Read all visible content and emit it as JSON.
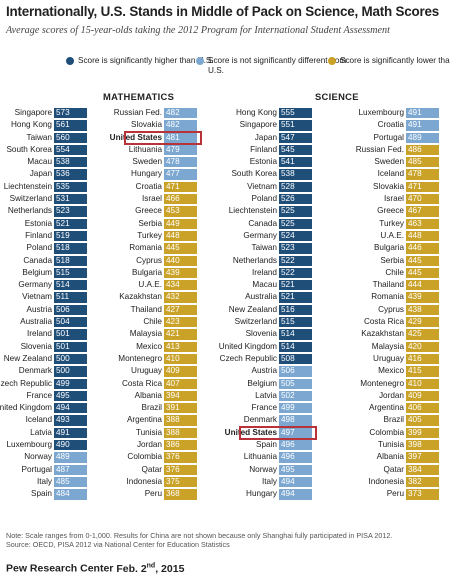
{
  "title": "Internationally, U.S. Stands in Middle of Pack on Science, Math Scores",
  "subtitle": "Average scores of 15-year-olds taking the 2012 Program for International Student Assessment",
  "colors": {
    "higher": "#1f4e79",
    "similar": "#7ba7d1",
    "lower": "#c9a227",
    "highlight": "#b8323a"
  },
  "legend": [
    {
      "key": "higher",
      "text": "Score is significantly higher than U.S."
    },
    {
      "key": "similar",
      "text": "Score is not significantly different from U.S."
    },
    {
      "key": "lower",
      "text": "Score is significantly lower than U.S."
    }
  ],
  "note": "Note: Scale ranges from 0-1,000. Results for China are not shown because only Shanghai fully participated in PISA 2012.",
  "source": "Source: OECD, PISA 2012 via National Center for Education Statistics",
  "footer": {
    "org": "Pew Research Center",
    "date_prefix": "Feb. 2",
    "date_sup": "nd",
    "date_suffix": ", 2015"
  },
  "chart_data": [
    {
      "type": "table",
      "title": "MATHEMATICS",
      "columns": [
        [
          {
            "country": "Singapore",
            "score": 573,
            "group": "higher"
          },
          {
            "country": "Hong Kong",
            "score": 561,
            "group": "higher"
          },
          {
            "country": "Taiwan",
            "score": 560,
            "group": "higher"
          },
          {
            "country": "South Korea",
            "score": 554,
            "group": "higher"
          },
          {
            "country": "Macau",
            "score": 538,
            "group": "higher"
          },
          {
            "country": "Japan",
            "score": 536,
            "group": "higher"
          },
          {
            "country": "Liechtenstein",
            "score": 535,
            "group": "higher"
          },
          {
            "country": "Switzerland",
            "score": 531,
            "group": "higher"
          },
          {
            "country": "Netherlands",
            "score": 523,
            "group": "higher"
          },
          {
            "country": "Estonia",
            "score": 521,
            "group": "higher"
          },
          {
            "country": "Finland",
            "score": 519,
            "group": "higher"
          },
          {
            "country": "Poland",
            "score": 518,
            "group": "higher"
          },
          {
            "country": "Canada",
            "score": 518,
            "group": "higher"
          },
          {
            "country": "Belgium",
            "score": 515,
            "group": "higher"
          },
          {
            "country": "Germany",
            "score": 514,
            "group": "higher"
          },
          {
            "country": "Vietnam",
            "score": 511,
            "group": "higher"
          },
          {
            "country": "Austria",
            "score": 506,
            "group": "higher"
          },
          {
            "country": "Australia",
            "score": 504,
            "group": "higher"
          },
          {
            "country": "Ireland",
            "score": 501,
            "group": "higher"
          },
          {
            "country": "Slovenia",
            "score": 501,
            "group": "higher"
          },
          {
            "country": "New Zealand",
            "score": 500,
            "group": "higher"
          },
          {
            "country": "Denmark",
            "score": 500,
            "group": "higher"
          },
          {
            "country": "Czech Republic",
            "score": 499,
            "group": "higher"
          },
          {
            "country": "France",
            "score": 495,
            "group": "higher"
          },
          {
            "country": "United Kingdom",
            "score": 494,
            "group": "higher"
          },
          {
            "country": "Iceland",
            "score": 493,
            "group": "higher"
          },
          {
            "country": "Latvia",
            "score": 491,
            "group": "higher"
          },
          {
            "country": "Luxembourg",
            "score": 490,
            "group": "higher"
          },
          {
            "country": "Norway",
            "score": 489,
            "group": "similar"
          },
          {
            "country": "Portugal",
            "score": 487,
            "group": "similar"
          },
          {
            "country": "Italy",
            "score": 485,
            "group": "similar"
          },
          {
            "country": "Spain",
            "score": 484,
            "group": "similar"
          }
        ],
        [
          {
            "country": "Russian Fed.",
            "score": 482,
            "group": "similar"
          },
          {
            "country": "Slovakia",
            "score": 482,
            "group": "similar"
          },
          {
            "country": "United States",
            "score": 481,
            "group": "similar",
            "us": true
          },
          {
            "country": "Lithuania",
            "score": 479,
            "group": "similar"
          },
          {
            "country": "Sweden",
            "score": 478,
            "group": "similar"
          },
          {
            "country": "Hungary",
            "score": 477,
            "group": "similar"
          },
          {
            "country": "Croatia",
            "score": 471,
            "group": "lower"
          },
          {
            "country": "Israel",
            "score": 466,
            "group": "lower"
          },
          {
            "country": "Greece",
            "score": 453,
            "group": "lower"
          },
          {
            "country": "Serbia",
            "score": 449,
            "group": "lower"
          },
          {
            "country": "Turkey",
            "score": 448,
            "group": "lower"
          },
          {
            "country": "Romania",
            "score": 445,
            "group": "lower"
          },
          {
            "country": "Cyprus",
            "score": 440,
            "group": "lower"
          },
          {
            "country": "Bulgaria",
            "score": 439,
            "group": "lower"
          },
          {
            "country": "U.A.E.",
            "score": 434,
            "group": "lower"
          },
          {
            "country": "Kazakhstan",
            "score": 432,
            "group": "lower"
          },
          {
            "country": "Thailand",
            "score": 427,
            "group": "lower"
          },
          {
            "country": "Chile",
            "score": 423,
            "group": "lower"
          },
          {
            "country": "Malaysia",
            "score": 421,
            "group": "lower"
          },
          {
            "country": "Mexico",
            "score": 413,
            "group": "lower"
          },
          {
            "country": "Montenegro",
            "score": 410,
            "group": "lower"
          },
          {
            "country": "Uruguay",
            "score": 409,
            "group": "lower"
          },
          {
            "country": "Costa Rica",
            "score": 407,
            "group": "lower"
          },
          {
            "country": "Albania",
            "score": 394,
            "group": "lower"
          },
          {
            "country": "Brazil",
            "score": 391,
            "group": "lower"
          },
          {
            "country": "Argentina",
            "score": 388,
            "group": "lower"
          },
          {
            "country": "Tunisia",
            "score": 388,
            "group": "lower"
          },
          {
            "country": "Jordan",
            "score": 386,
            "group": "lower"
          },
          {
            "country": "Colombia",
            "score": 376,
            "group": "lower"
          },
          {
            "country": "Qatar",
            "score": 376,
            "group": "lower"
          },
          {
            "country": "Indonesia",
            "score": 375,
            "group": "lower"
          },
          {
            "country": "Peru",
            "score": 368,
            "group": "lower"
          }
        ]
      ]
    },
    {
      "type": "table",
      "title": "SCIENCE",
      "columns": [
        [
          {
            "country": "Hong Kong",
            "score": 555,
            "group": "higher"
          },
          {
            "country": "Singapore",
            "score": 551,
            "group": "higher"
          },
          {
            "country": "Japan",
            "score": 547,
            "group": "higher"
          },
          {
            "country": "Finland",
            "score": 545,
            "group": "higher"
          },
          {
            "country": "Estonia",
            "score": 541,
            "group": "higher"
          },
          {
            "country": "South Korea",
            "score": 538,
            "group": "higher"
          },
          {
            "country": "Vietnam",
            "score": 528,
            "group": "higher"
          },
          {
            "country": "Poland",
            "score": 526,
            "group": "higher"
          },
          {
            "country": "Liechtenstein",
            "score": 525,
            "group": "higher"
          },
          {
            "country": "Canada",
            "score": 525,
            "group": "higher"
          },
          {
            "country": "Germany",
            "score": 524,
            "group": "higher"
          },
          {
            "country": "Taiwan",
            "score": 523,
            "group": "higher"
          },
          {
            "country": "Netherlands",
            "score": 522,
            "group": "higher"
          },
          {
            "country": "Ireland",
            "score": 522,
            "group": "higher"
          },
          {
            "country": "Macau",
            "score": 521,
            "group": "higher"
          },
          {
            "country": "Australia",
            "score": 521,
            "group": "higher"
          },
          {
            "country": "New Zealand",
            "score": 516,
            "group": "higher"
          },
          {
            "country": "Switzerland",
            "score": 515,
            "group": "higher"
          },
          {
            "country": "Slovenia",
            "score": 514,
            "group": "higher"
          },
          {
            "country": "United Kingdom",
            "score": 514,
            "group": "higher"
          },
          {
            "country": "Czech Republic",
            "score": 508,
            "group": "higher"
          },
          {
            "country": "Austria",
            "score": 506,
            "group": "similar"
          },
          {
            "country": "Belgium",
            "score": 505,
            "group": "similar"
          },
          {
            "country": "Latvia",
            "score": 502,
            "group": "similar"
          },
          {
            "country": "France",
            "score": 499,
            "group": "similar"
          },
          {
            "country": "Denmark",
            "score": 498,
            "group": "similar"
          },
          {
            "country": "United States",
            "score": 497,
            "group": "similar",
            "us": true
          },
          {
            "country": "Spain",
            "score": 496,
            "group": "similar"
          },
          {
            "country": "Lithuania",
            "score": 496,
            "group": "similar"
          },
          {
            "country": "Norway",
            "score": 495,
            "group": "similar"
          },
          {
            "country": "Italy",
            "score": 494,
            "group": "similar"
          },
          {
            "country": "Hungary",
            "score": 494,
            "group": "similar"
          }
        ],
        [
          {
            "country": "Luxembourg",
            "score": 491,
            "group": "similar"
          },
          {
            "country": "Croatia",
            "score": 491,
            "group": "similar"
          },
          {
            "country": "Portugal",
            "score": 489,
            "group": "similar"
          },
          {
            "country": "Russian Fed.",
            "score": 486,
            "group": "lower"
          },
          {
            "country": "Sweden",
            "score": 485,
            "group": "lower"
          },
          {
            "country": "Iceland",
            "score": 478,
            "group": "lower"
          },
          {
            "country": "Slovakia",
            "score": 471,
            "group": "lower"
          },
          {
            "country": "Israel",
            "score": 470,
            "group": "lower"
          },
          {
            "country": "Greece",
            "score": 467,
            "group": "lower"
          },
          {
            "country": "Turkey",
            "score": 463,
            "group": "lower"
          },
          {
            "country": "U.A.E.",
            "score": 448,
            "group": "lower"
          },
          {
            "country": "Bulgaria",
            "score": 446,
            "group": "lower"
          },
          {
            "country": "Serbia",
            "score": 445,
            "group": "lower"
          },
          {
            "country": "Chile",
            "score": 445,
            "group": "lower"
          },
          {
            "country": "Thailand",
            "score": 444,
            "group": "lower"
          },
          {
            "country": "Romania",
            "score": 439,
            "group": "lower"
          },
          {
            "country": "Cyprus",
            "score": 438,
            "group": "lower"
          },
          {
            "country": "Costa Rica",
            "score": 429,
            "group": "lower"
          },
          {
            "country": "Kazakhstan",
            "score": 425,
            "group": "lower"
          },
          {
            "country": "Malaysia",
            "score": 420,
            "group": "lower"
          },
          {
            "country": "Uruguay",
            "score": 416,
            "group": "lower"
          },
          {
            "country": "Mexico",
            "score": 415,
            "group": "lower"
          },
          {
            "country": "Montenegro",
            "score": 410,
            "group": "lower"
          },
          {
            "country": "Jordan",
            "score": 409,
            "group": "lower"
          },
          {
            "country": "Argentina",
            "score": 406,
            "group": "lower"
          },
          {
            "country": "Brazil",
            "score": 405,
            "group": "lower"
          },
          {
            "country": "Colombia",
            "score": 399,
            "group": "lower"
          },
          {
            "country": "Tunisia",
            "score": 398,
            "group": "lower"
          },
          {
            "country": "Albania",
            "score": 397,
            "group": "lower"
          },
          {
            "country": "Qatar",
            "score": 384,
            "group": "lower"
          },
          {
            "country": "Indonesia",
            "score": 382,
            "group": "lower"
          },
          {
            "country": "Peru",
            "score": 373,
            "group": "lower"
          }
        ]
      ]
    }
  ]
}
